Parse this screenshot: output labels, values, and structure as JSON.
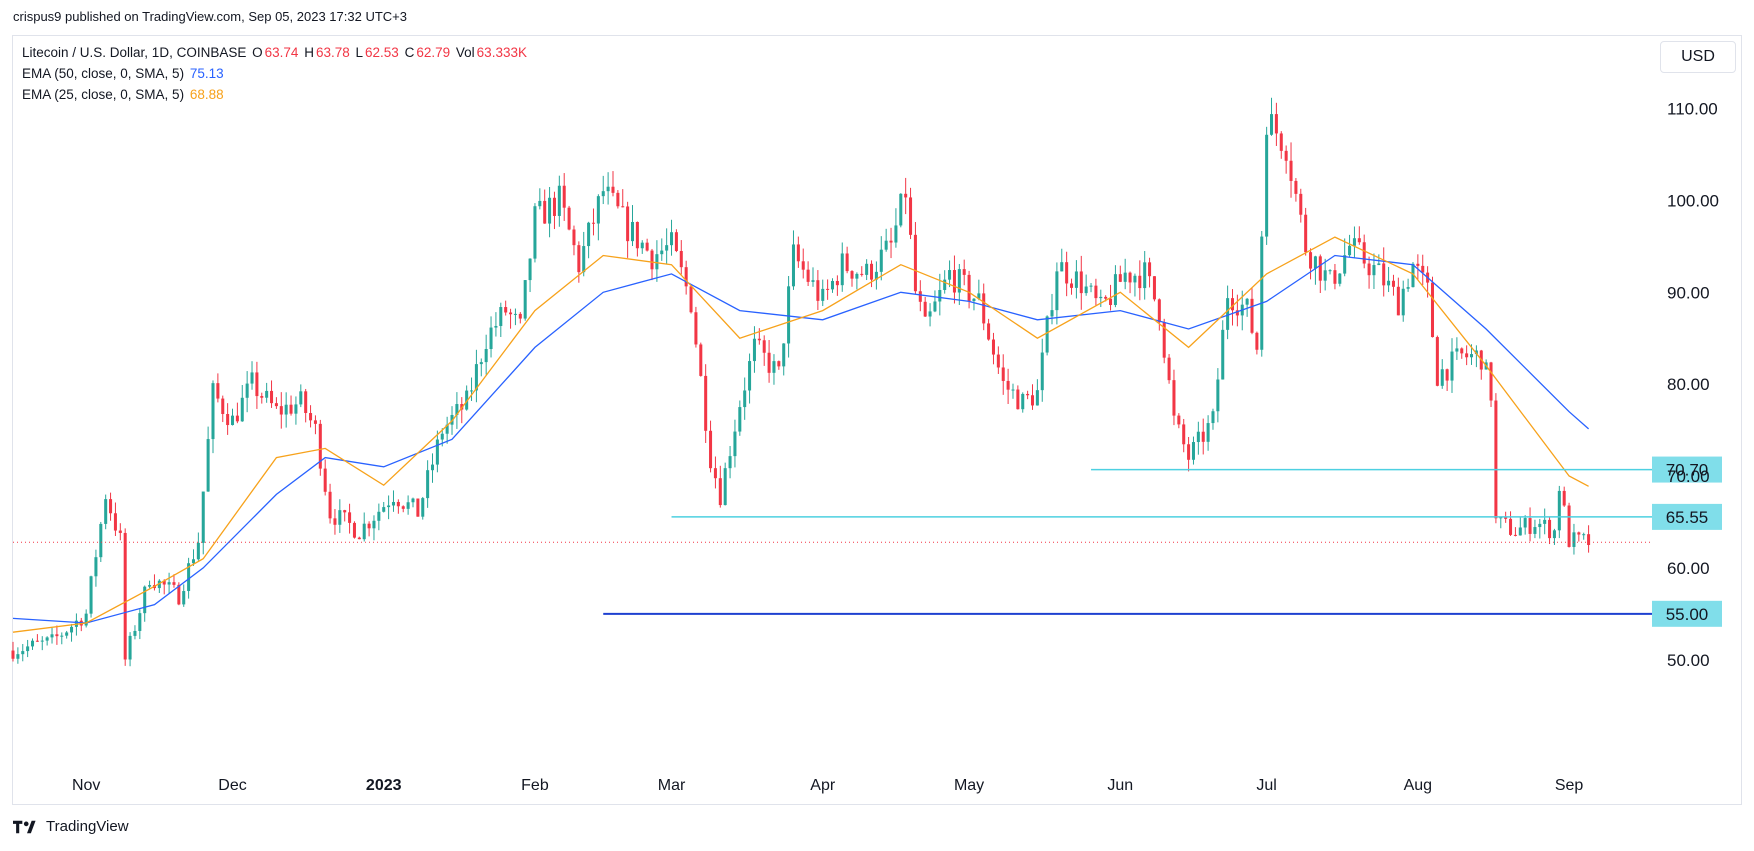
{
  "caption": "crispus9 published on TradingView.com, Sep 05, 2023 17:32 UTC+3",
  "legend": {
    "symbol": "Litecoin / U.S. Dollar, 1D, COINBASE",
    "o_label": "O",
    "o_value": "63.74",
    "h_label": "H",
    "h_value": "63.78",
    "l_label": "L",
    "l_value": "62.53",
    "c_label": "C",
    "c_value": "62.79",
    "vol_label": "Vol",
    "vol_value": "63.333K",
    "ema50_label": "EMA (50, close, 0, SMA, 5)",
    "ema50_value": "75.13",
    "ema25_label": "EMA (25, close, 0, SMA, 5)",
    "ema25_value": "68.88"
  },
  "currency": "USD",
  "footer": {
    "brand": "TradingView"
  },
  "colors": {
    "up": "#26a69a",
    "down": "#f23645",
    "ema50": "#2962ff",
    "ema25": "#f7a21b",
    "support_line": "#4dd0e1",
    "support_label_bg": "#80deea",
    "strong_support": "#1e40d0",
    "text": "#131722",
    "price_line": "#f23645"
  },
  "chart_data": {
    "type": "candlestick",
    "title": "Litecoin / U.S. Dollar, 1D, COINBASE",
    "ylim": [
      38,
      118
    ],
    "y_ticks": [
      50,
      60,
      70,
      80,
      90,
      100,
      110
    ],
    "y_tick_labels": [
      "50.00",
      "60.00",
      "70.00",
      "80.00",
      "90.00",
      "100.00",
      "110.00"
    ],
    "x_ticks": [
      {
        "label": "Nov",
        "date": "2022-11-01"
      },
      {
        "label": "Dec",
        "date": "2022-12-01"
      },
      {
        "label": "2023",
        "date": "2023-01-01",
        "bold": true
      },
      {
        "label": "Feb",
        "date": "2023-02-01"
      },
      {
        "label": "Mar",
        "date": "2023-03-01"
      },
      {
        "label": "Apr",
        "date": "2023-04-01"
      },
      {
        "label": "May",
        "date": "2023-05-01"
      },
      {
        "label": "Jun",
        "date": "2023-06-01"
      },
      {
        "label": "Jul",
        "date": "2023-07-01"
      },
      {
        "label": "Aug",
        "date": "2023-08-01"
      },
      {
        "label": "Sep",
        "date": "2023-09-01"
      }
    ],
    "x_range": [
      "2022-10-17",
      "2023-09-18"
    ],
    "closes": [
      {
        "date": "2022-10-17",
        "close": 51
      },
      {
        "date": "2022-10-25",
        "close": 52
      },
      {
        "date": "2022-11-01",
        "close": 55
      },
      {
        "date": "2022-11-05",
        "close": 68
      },
      {
        "date": "2022-11-08",
        "close": 63
      },
      {
        "date": "2022-11-09",
        "close": 50
      },
      {
        "date": "2022-11-14",
        "close": 59
      },
      {
        "date": "2022-11-20",
        "close": 57
      },
      {
        "date": "2022-11-24",
        "close": 63
      },
      {
        "date": "2022-11-27",
        "close": 79
      },
      {
        "date": "2022-12-01",
        "close": 76
      },
      {
        "date": "2022-12-05",
        "close": 80
      },
      {
        "date": "2022-12-10",
        "close": 77
      },
      {
        "date": "2022-12-15",
        "close": 78
      },
      {
        "date": "2022-12-18",
        "close": 75
      },
      {
        "date": "2022-12-21",
        "close": 66
      },
      {
        "date": "2022-12-27",
        "close": 64
      },
      {
        "date": "2023-01-03",
        "close": 68
      },
      {
        "date": "2023-01-08",
        "close": 66
      },
      {
        "date": "2023-01-13",
        "close": 75
      },
      {
        "date": "2023-01-18",
        "close": 78
      },
      {
        "date": "2023-01-22",
        "close": 85
      },
      {
        "date": "2023-01-26",
        "close": 88
      },
      {
        "date": "2023-01-29",
        "close": 86
      },
      {
        "date": "2023-02-01",
        "close": 98
      },
      {
        "date": "2023-02-06",
        "close": 100
      },
      {
        "date": "2023-02-10",
        "close": 93
      },
      {
        "date": "2023-02-15",
        "close": 101
      },
      {
        "date": "2023-02-20",
        "close": 97
      },
      {
        "date": "2023-02-25",
        "close": 94
      },
      {
        "date": "2023-03-01",
        "close": 95
      },
      {
        "date": "2023-03-05",
        "close": 89
      },
      {
        "date": "2023-03-09",
        "close": 72
      },
      {
        "date": "2023-03-11",
        "close": 68
      },
      {
        "date": "2023-03-15",
        "close": 78
      },
      {
        "date": "2023-03-18",
        "close": 84
      },
      {
        "date": "2023-03-23",
        "close": 81
      },
      {
        "date": "2023-03-26",
        "close": 94
      },
      {
        "date": "2023-04-01",
        "close": 89
      },
      {
        "date": "2023-04-05",
        "close": 93
      },
      {
        "date": "2023-04-10",
        "close": 92
      },
      {
        "date": "2023-04-15",
        "close": 95
      },
      {
        "date": "2023-04-18",
        "close": 101
      },
      {
        "date": "2023-04-20",
        "close": 90
      },
      {
        "date": "2023-04-22",
        "close": 86
      },
      {
        "date": "2023-04-27",
        "close": 92
      },
      {
        "date": "2023-05-03",
        "close": 89
      },
      {
        "date": "2023-05-08",
        "close": 80
      },
      {
        "date": "2023-05-12",
        "close": 78
      },
      {
        "date": "2023-05-15",
        "close": 79
      },
      {
        "date": "2023-05-19",
        "close": 93
      },
      {
        "date": "2023-05-24",
        "close": 91
      },
      {
        "date": "2023-05-28",
        "close": 88
      },
      {
        "date": "2023-06-02",
        "close": 92
      },
      {
        "date": "2023-06-06",
        "close": 92
      },
      {
        "date": "2023-06-09",
        "close": 88
      },
      {
        "date": "2023-06-12",
        "close": 76
      },
      {
        "date": "2023-06-15",
        "close": 72
      },
      {
        "date": "2023-06-20",
        "close": 76
      },
      {
        "date": "2023-06-23",
        "close": 90
      },
      {
        "date": "2023-06-27",
        "close": 88
      },
      {
        "date": "2023-06-29",
        "close": 84
      },
      {
        "date": "2023-07-01",
        "close": 109
      },
      {
        "date": "2023-07-05",
        "close": 106
      },
      {
        "date": "2023-07-09",
        "close": 95
      },
      {
        "date": "2023-07-14",
        "close": 91
      },
      {
        "date": "2023-07-18",
        "close": 95
      },
      {
        "date": "2023-07-24",
        "close": 92
      },
      {
        "date": "2023-07-28",
        "close": 89
      },
      {
        "date": "2023-07-31",
        "close": 93
      },
      {
        "date": "2023-08-03",
        "close": 90
      },
      {
        "date": "2023-08-05",
        "close": 81
      },
      {
        "date": "2023-08-10",
        "close": 83
      },
      {
        "date": "2023-08-14",
        "close": 83
      },
      {
        "date": "2023-08-16",
        "close": 79
      },
      {
        "date": "2023-08-17",
        "close": 65
      },
      {
        "date": "2023-08-21",
        "close": 64
      },
      {
        "date": "2023-08-25",
        "close": 65
      },
      {
        "date": "2023-08-29",
        "close": 64
      },
      {
        "date": "2023-08-30",
        "close": 69
      },
      {
        "date": "2023-09-01",
        "close": 63
      },
      {
        "date": "2023-09-05",
        "close": 62.79
      }
    ],
    "ema50": [
      {
        "date": "2022-10-17",
        "value": 54.5
      },
      {
        "date": "2022-11-01",
        "value": 54
      },
      {
        "date": "2022-11-15",
        "value": 56
      },
      {
        "date": "2022-11-25",
        "value": 60
      },
      {
        "date": "2022-12-10",
        "value": 68
      },
      {
        "date": "2022-12-20",
        "value": 72
      },
      {
        "date": "2023-01-01",
        "value": 71
      },
      {
        "date": "2023-01-15",
        "value": 74
      },
      {
        "date": "2023-02-01",
        "value": 84
      },
      {
        "date": "2023-02-15",
        "value": 90
      },
      {
        "date": "2023-03-01",
        "value": 92
      },
      {
        "date": "2023-03-15",
        "value": 88
      },
      {
        "date": "2023-04-01",
        "value": 87
      },
      {
        "date": "2023-04-17",
        "value": 90
      },
      {
        "date": "2023-05-01",
        "value": 89
      },
      {
        "date": "2023-05-15",
        "value": 87
      },
      {
        "date": "2023-06-01",
        "value": 88
      },
      {
        "date": "2023-06-15",
        "value": 86
      },
      {
        "date": "2023-07-01",
        "value": 89
      },
      {
        "date": "2023-07-15",
        "value": 94
      },
      {
        "date": "2023-07-31",
        "value": 93
      },
      {
        "date": "2023-08-15",
        "value": 86
      },
      {
        "date": "2023-09-01",
        "value": 77
      },
      {
        "date": "2023-09-05",
        "value": 75.13
      }
    ],
    "ema25": [
      {
        "date": "2022-10-17",
        "value": 53
      },
      {
        "date": "2022-11-01",
        "value": 54
      },
      {
        "date": "2022-11-15",
        "value": 58
      },
      {
        "date": "2022-11-25",
        "value": 61
      },
      {
        "date": "2022-12-10",
        "value": 72
      },
      {
        "date": "2022-12-20",
        "value": 73
      },
      {
        "date": "2023-01-01",
        "value": 69
      },
      {
        "date": "2023-01-15",
        "value": 76
      },
      {
        "date": "2023-02-01",
        "value": 88
      },
      {
        "date": "2023-02-15",
        "value": 94
      },
      {
        "date": "2023-03-01",
        "value": 93
      },
      {
        "date": "2023-03-15",
        "value": 85
      },
      {
        "date": "2023-04-01",
        "value": 88
      },
      {
        "date": "2023-04-17",
        "value": 93
      },
      {
        "date": "2023-05-01",
        "value": 90
      },
      {
        "date": "2023-05-15",
        "value": 85
      },
      {
        "date": "2023-06-01",
        "value": 90
      },
      {
        "date": "2023-06-15",
        "value": 84
      },
      {
        "date": "2023-07-01",
        "value": 92
      },
      {
        "date": "2023-07-15",
        "value": 96
      },
      {
        "date": "2023-07-31",
        "value": 92
      },
      {
        "date": "2023-08-15",
        "value": 82
      },
      {
        "date": "2023-09-01",
        "value": 70
      },
      {
        "date": "2023-09-05",
        "value": 68.88
      }
    ],
    "levels": [
      {
        "value": 70.7,
        "label": "70.70",
        "from": "2023-05-26",
        "style": "support"
      },
      {
        "value": 65.55,
        "label": "65.55",
        "from": "2023-03-01",
        "style": "support"
      },
      {
        "value": 55.0,
        "label": "55.00",
        "from": "2023-02-15",
        "style": "strong"
      }
    ],
    "last_price": 62.79
  }
}
